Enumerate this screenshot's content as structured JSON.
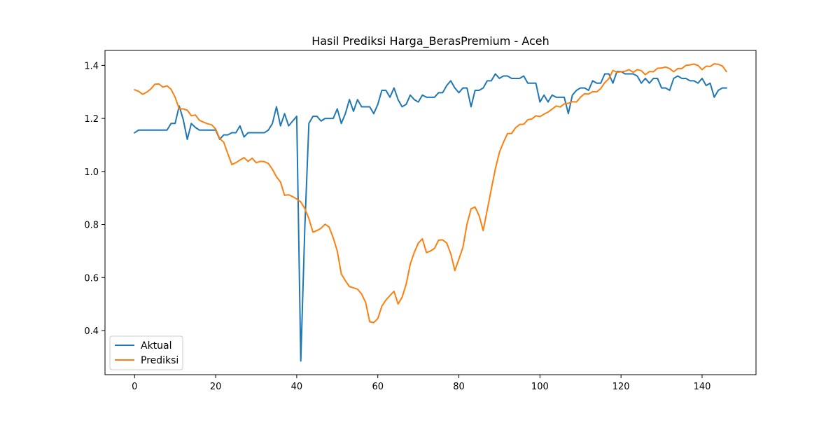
{
  "chart_data": {
    "type": "line",
    "title": "Hasil Prediksi Harga_BerasPremium - Aceh",
    "xlabel": "",
    "ylabel": "",
    "xlim": [
      -7.3,
      153.3
    ],
    "ylim": [
      0.2335,
      1.4565
    ],
    "xticks": [
      0,
      20,
      40,
      60,
      80,
      100,
      120,
      140
    ],
    "yticks": [
      0.4,
      0.6,
      0.8,
      1.0,
      1.2,
      1.4
    ],
    "ytick_labels": [
      "0.4",
      "0.6",
      "0.8",
      "1.0",
      "1.2",
      "1.4"
    ],
    "grid": false,
    "legend_position": "lower-left",
    "series": [
      {
        "name": "Aktual",
        "color": "#1f77b4",
        "values": [
          1.146,
          1.156,
          1.156,
          1.156,
          1.156,
          1.156,
          1.156,
          1.156,
          1.156,
          1.181,
          1.181,
          1.247,
          1.196,
          1.121,
          1.181,
          1.166,
          1.156,
          1.156,
          1.156,
          1.156,
          1.156,
          1.121,
          1.138,
          1.138,
          1.146,
          1.146,
          1.172,
          1.13,
          1.146,
          1.146,
          1.146,
          1.146,
          1.146,
          1.156,
          1.181,
          1.244,
          1.172,
          1.218,
          1.172,
          1.19,
          1.208,
          0.285,
          0.79,
          1.181,
          1.208,
          1.208,
          1.19,
          1.2,
          1.2,
          1.2,
          1.236,
          1.181,
          1.218,
          1.271,
          1.227,
          1.271,
          1.244,
          1.244,
          1.244,
          1.218,
          1.253,
          1.306,
          1.306,
          1.28,
          1.315,
          1.271,
          1.244,
          1.253,
          1.288,
          1.271,
          1.262,
          1.288,
          1.28,
          1.28,
          1.28,
          1.297,
          1.297,
          1.324,
          1.342,
          1.315,
          1.297,
          1.315,
          1.315,
          1.244,
          1.306,
          1.306,
          1.315,
          1.342,
          1.342,
          1.368,
          1.351,
          1.36,
          1.36,
          1.351,
          1.351,
          1.351,
          1.36,
          1.333,
          1.333,
          1.333,
          1.262,
          1.288,
          1.262,
          1.288,
          1.28,
          1.28,
          1.28,
          1.218,
          1.288,
          1.306,
          1.315,
          1.315,
          1.306,
          1.342,
          1.333,
          1.333,
          1.368,
          1.368,
          1.333,
          1.377,
          1.377,
          1.368,
          1.368,
          1.368,
          1.36,
          1.333,
          1.351,
          1.333,
          1.351,
          1.351,
          1.315,
          1.315,
          1.306,
          1.351,
          1.36,
          1.351,
          1.351,
          1.342,
          1.342,
          1.333,
          1.351,
          1.324,
          1.333,
          1.28,
          1.306,
          1.315,
          1.315
        ]
      },
      {
        "name": "Prediksi",
        "color": "#ff7f0e",
        "values": [
          1.308,
          1.302,
          1.291,
          1.299,
          1.311,
          1.329,
          1.33,
          1.318,
          1.323,
          1.31,
          1.28,
          1.236,
          1.236,
          1.231,
          1.21,
          1.213,
          1.193,
          1.186,
          1.18,
          1.176,
          1.16,
          1.124,
          1.11,
          1.067,
          1.026,
          1.033,
          1.043,
          1.052,
          1.038,
          1.05,
          1.033,
          1.038,
          1.037,
          1.03,
          1.008,
          0.98,
          0.96,
          0.91,
          0.912,
          0.905,
          0.896,
          0.885,
          0.86,
          0.822,
          0.771,
          0.777,
          0.786,
          0.801,
          0.79,
          0.75,
          0.7,
          0.613,
          0.588,
          0.566,
          0.561,
          0.556,
          0.538,
          0.506,
          0.433,
          0.43,
          0.445,
          0.492,
          0.515,
          0.532,
          0.548,
          0.5,
          0.526,
          0.575,
          0.65,
          0.695,
          0.73,
          0.746,
          0.694,
          0.7,
          0.71,
          0.741,
          0.742,
          0.73,
          0.69,
          0.626,
          0.669,
          0.714,
          0.801,
          0.859,
          0.866,
          0.833,
          0.777,
          0.855,
          0.933,
          1.01,
          1.072,
          1.11,
          1.143,
          1.143,
          1.165,
          1.177,
          1.178,
          1.195,
          1.198,
          1.21,
          1.207,
          1.216,
          1.224,
          1.235,
          1.247,
          1.243,
          1.255,
          1.257,
          1.263,
          1.262,
          1.28,
          1.293,
          1.292,
          1.301,
          1.3,
          1.313,
          1.335,
          1.35,
          1.381,
          1.374,
          1.376,
          1.378,
          1.384,
          1.374,
          1.384,
          1.38,
          1.365,
          1.377,
          1.376,
          1.389,
          1.39,
          1.394,
          1.388,
          1.376,
          1.388,
          1.388,
          1.4,
          1.402,
          1.405,
          1.4,
          1.384,
          1.397,
          1.396,
          1.406,
          1.404,
          1.398,
          1.377
        ]
      }
    ]
  }
}
